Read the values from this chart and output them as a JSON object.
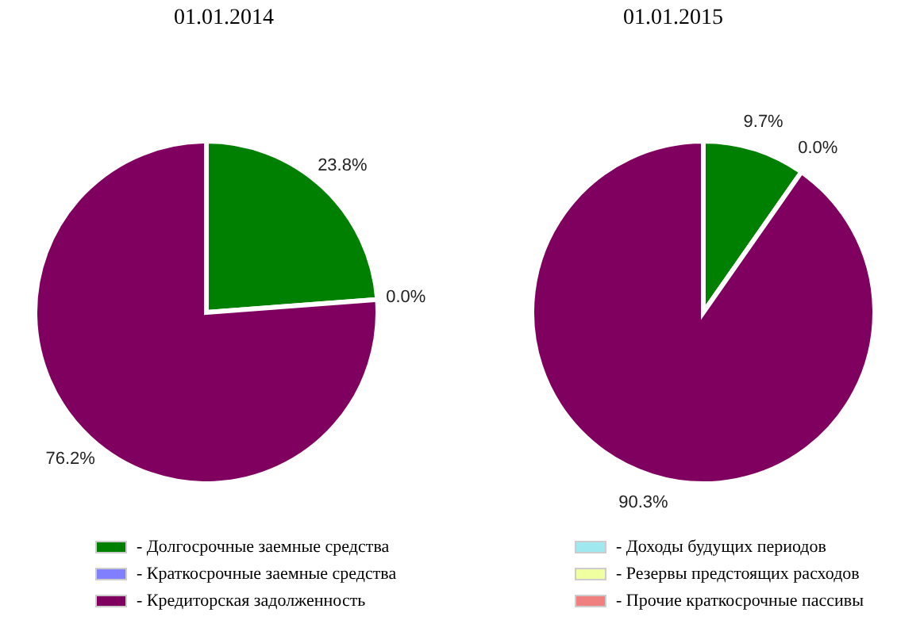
{
  "chart_data": [
    {
      "type": "pie",
      "title": "01.01.2014",
      "categories": [
        "- Долгосрочные заемные средства",
        "- Краткосрочные заемные средства",
        "- Кредиторская задолженность",
        "- Доходы будущих периодов",
        "- Резервы предстоящих расходов",
        "- Прочие краткосрочные пассивы"
      ],
      "values": [
        23.8,
        0.0,
        76.2,
        0,
        0,
        0
      ],
      "value_labels": [
        "23.8%",
        "0.0%",
        "76.2%",
        null,
        null,
        null
      ],
      "colors": [
        "#008000",
        "#8080ff",
        "#800060",
        "#a0e8f0",
        "#f0ffa0",
        "#f08080"
      ],
      "legend": "bottom"
    },
    {
      "type": "pie",
      "title": "01.01.2015",
      "categories": [
        null,
        null,
        null,
        null,
        null,
        null
      ],
      "values": [
        9.7,
        0.0,
        90.3,
        0,
        0,
        0
      ],
      "value_labels": [
        "9.7%",
        "0.0%",
        "90.3%",
        null,
        null,
        null
      ],
      "colors": [
        "#008000",
        "#8080ff",
        "#800060",
        "#a0e8f0",
        "#f0ffa0",
        "#f08080"
      ]
    }
  ]
}
